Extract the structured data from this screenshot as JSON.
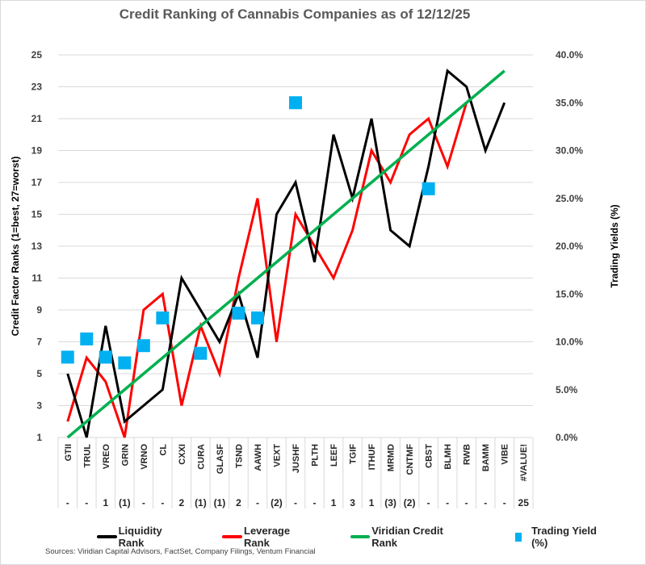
{
  "chart_data": {
    "type": "line",
    "title": "Credit Ranking of Cannabis Companies as of 12/12/25",
    "ylabel": "Credit Factor Ranks (1=best, 27=worst)",
    "y2label": "Trading Yields (%)",
    "ylim": [
      1,
      25
    ],
    "yticks": [
      "1",
      "3",
      "5",
      "7",
      "9",
      "11",
      "13",
      "15",
      "17",
      "19",
      "21",
      "23",
      "25"
    ],
    "y2lim": [
      0,
      40
    ],
    "y2ticks": [
      "0.0%",
      "5.0%",
      "10.0%",
      "15.0%",
      "20.0%",
      "25.0%",
      "30.0%",
      "35.0%",
      "40.0%"
    ],
    "grid": true,
    "legend_position": "bottom",
    "categories": [
      "GTII",
      "TRUL",
      "VREO",
      "GRIN",
      "VRNO",
      "CL",
      "CXXI",
      "CURA",
      "GLASF",
      "TSND",
      "AAWH",
      "VEXT",
      "JUSHF",
      "PLTH",
      "LEEF",
      "TGIF",
      "ITHUF",
      "MRMD",
      "CNTMF",
      "CBST",
      "BLMH",
      "RWB",
      "BAMM",
      "VIBE",
      "#VALUE!"
    ],
    "rank_changes": [
      "-",
      "-",
      "1",
      "(1)",
      "-",
      "-",
      "2",
      "(1)",
      "(1)",
      "2",
      "-",
      "(2)",
      "-",
      "-",
      "1",
      "3",
      "1",
      "(3)",
      "(2)",
      "-",
      "-",
      "-",
      "-",
      "-",
      "25"
    ],
    "series": [
      {
        "name": "Liquidity Rank",
        "color": "#000000",
        "axis": "left",
        "kind": "line",
        "values": [
          5,
          1,
          8,
          2,
          3,
          4,
          11,
          9,
          7,
          10,
          6,
          15,
          17,
          12,
          20,
          16,
          21,
          14,
          13,
          18,
          24,
          23,
          19,
          22,
          null
        ]
      },
      {
        "name": "Leverage Rank",
        "color": "#ff0000",
        "axis": "left",
        "kind": "line",
        "values": [
          2,
          6,
          4.5,
          1,
          9,
          10,
          3,
          8,
          5,
          11,
          16,
          7,
          15,
          13,
          11,
          14,
          19,
          17,
          20,
          21,
          18,
          22,
          null,
          null,
          null
        ]
      },
      {
        "name": "Viridian Credit Rank",
        "color": "#00b050",
        "axis": "left",
        "kind": "line",
        "values": [
          1,
          2,
          3,
          4,
          5,
          6,
          7,
          8,
          9,
          10,
          11,
          12,
          13,
          14,
          15,
          16,
          17,
          18,
          19,
          20,
          21,
          22,
          23,
          24,
          null
        ]
      },
      {
        "name": "Trading Yield (%)",
        "color": "#00b0f0",
        "axis": "right",
        "kind": "marker",
        "values": [
          8.4,
          10.3,
          8.4,
          7.8,
          9.6,
          12.5,
          null,
          8.8,
          null,
          13.0,
          12.5,
          null,
          35.0,
          null,
          null,
          null,
          null,
          null,
          null,
          26.0,
          null,
          null,
          null,
          null,
          null
        ]
      }
    ]
  },
  "source": "Sources: Viridian Capital Advisors, FactSet, Company Filings, Ventum Financial"
}
